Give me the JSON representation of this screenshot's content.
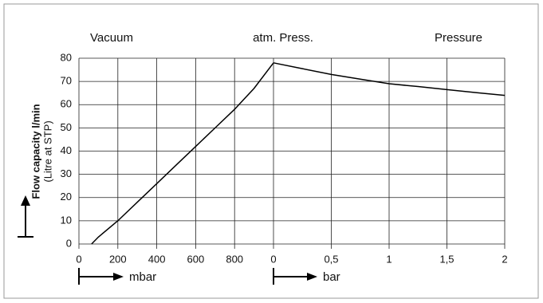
{
  "annotation": "atm. Press.",
  "chart_data": [
    {
      "type": "line",
      "title": "Vacuum",
      "xlabel": "mbar",
      "ylabel": "Flow capacity l/min",
      "ylabel_note": "(Litre at STP)",
      "x": [
        65,
        100,
        200,
        300,
        400,
        500,
        600,
        700,
        800,
        900,
        1000
      ],
      "values": [
        0,
        3,
        10,
        18,
        26,
        34,
        42,
        50,
        58,
        67,
        78
      ],
      "xlim": [
        0,
        1000
      ],
      "xticks": [
        0,
        200,
        400,
        600,
        800
      ],
      "ylim": [
        0,
        80
      ],
      "yticks": [
        0,
        10,
        20,
        30,
        40,
        50,
        60,
        70,
        80
      ],
      "color": "#000000",
      "grid": true
    },
    {
      "type": "line",
      "title": "Pressure",
      "xlabel": "bar",
      "x": [
        0,
        0.25,
        0.5,
        0.75,
        1,
        1.25,
        1.5,
        1.75,
        2
      ],
      "values": [
        78,
        75.5,
        73,
        71,
        69,
        67.8,
        66.5,
        65.2,
        64
      ],
      "xlim": [
        0,
        2
      ],
      "xticks": [
        0,
        {
          "value": 0.5,
          "label": "0,5"
        },
        1,
        {
          "value": 1.5,
          "label": "1,5"
        },
        2
      ],
      "ylim": [
        0,
        80
      ],
      "color": "#000000",
      "grid": true
    }
  ]
}
